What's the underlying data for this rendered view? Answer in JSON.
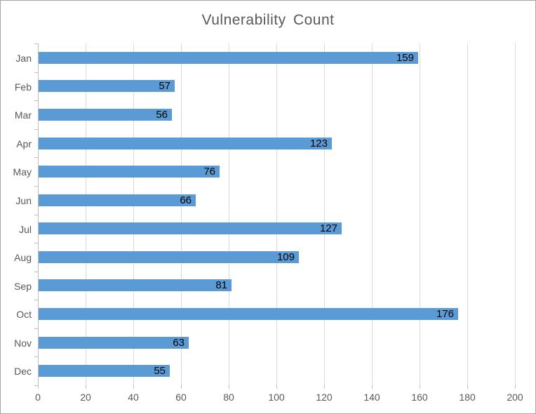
{
  "chart_data": {
    "type": "bar",
    "orientation": "horizontal",
    "title": "Vulnerability Count",
    "categories": [
      "Jan",
      "Feb",
      "Mar",
      "Apr",
      "May",
      "Jun",
      "Jul",
      "Aug",
      "Sep",
      "Oct",
      "Nov",
      "Dec"
    ],
    "values": [
      159,
      57,
      56,
      123,
      76,
      66,
      127,
      109,
      81,
      176,
      63,
      55
    ],
    "xlabel": "",
    "ylabel": "",
    "xlim": [
      0,
      200
    ],
    "x_ticks": [
      0,
      20,
      40,
      60,
      80,
      100,
      120,
      140,
      160,
      180,
      200
    ],
    "grid": true,
    "legend": false,
    "data_label_position": "inside-end",
    "colors": {
      "bar": "#5b9bd5",
      "gridline": "#d9d9d9",
      "axis_line": "#bfbfbf",
      "axis_text": "#595959",
      "title_text": "#595959",
      "data_label_text": "#000000",
      "background": "#ffffff",
      "border": "#a6a6a6"
    }
  }
}
